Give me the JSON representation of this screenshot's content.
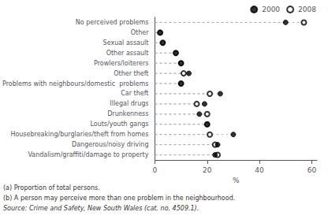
{
  "chart_data": {
    "type": "dot",
    "orientation": "horizontal",
    "categories": [
      "Vandalism/graffiti/damage to property",
      "Dangerous/noisy driving",
      "Housebreaking/burglaries/theft from homes",
      "Louts/youth gangs",
      "Drunkenness",
      "Illegal drugs",
      "Car theft",
      "Problems with neighbours/domestic  problems",
      "Other theft",
      "Prowlers/loiterers",
      "Other assault",
      "Sexual assault",
      "Other",
      "No perceived problems"
    ],
    "series": [
      {
        "name": "2000",
        "color": "#000000",
        "marker": "circle",
        "line_style": "dashed",
        "values": [
          23,
          24,
          30,
          20,
          17,
          19,
          25,
          10,
          13,
          10,
          8,
          3,
          2,
          50
        ]
      },
      {
        "name": "2008",
        "color": "#000000",
        "marker": "open_circle",
        "line_style": "dashed",
        "values": [
          24,
          23,
          21,
          20,
          20,
          16,
          21,
          10,
          11,
          10,
          8,
          3,
          2,
          57
        ]
      }
    ],
    "xlabel": "%",
    "xlim": [
      0,
      62
    ],
    "xticks": [
      0,
      20,
      40,
      60
    ],
    "grid": false,
    "legend": "upper right",
    "annotations": [
      "(a) Proportion of total persons.",
      "(b) A person may perceive more than one problem in the neighbourhood.",
      "Source: Crime and Safety, New South Wales (cat. no. 4509.1)."
    ]
  }
}
